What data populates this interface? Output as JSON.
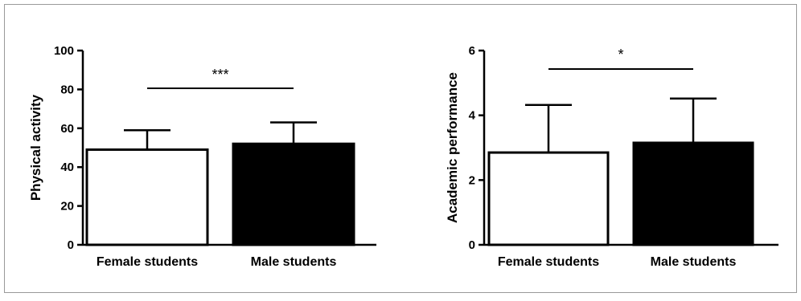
{
  "chart_data": [
    {
      "type": "bar",
      "categories": [
        "Female students",
        "Male students"
      ],
      "values": [
        49,
        52
      ],
      "error": [
        10,
        11
      ],
      "bar_colors": [
        "#ffffff",
        "#000000"
      ],
      "ylabel": "Physical activity",
      "ylim": [
        0,
        100
      ],
      "yticks": [
        0,
        20,
        40,
        60,
        80,
        100
      ],
      "significance": {
        "text": "***",
        "between": [
          0,
          1
        ]
      }
    },
    {
      "type": "bar",
      "categories": [
        "Female students",
        "Male students"
      ],
      "values": [
        2.85,
        3.15
      ],
      "error": [
        1.47,
        1.37
      ],
      "bar_colors": [
        "#ffffff",
        "#000000"
      ],
      "ylabel": "Academic performance",
      "ylim": [
        0,
        6
      ],
      "yticks": [
        0,
        2,
        4,
        6
      ],
      "significance": {
        "text": "*",
        "between": [
          0,
          1
        ]
      }
    }
  ]
}
